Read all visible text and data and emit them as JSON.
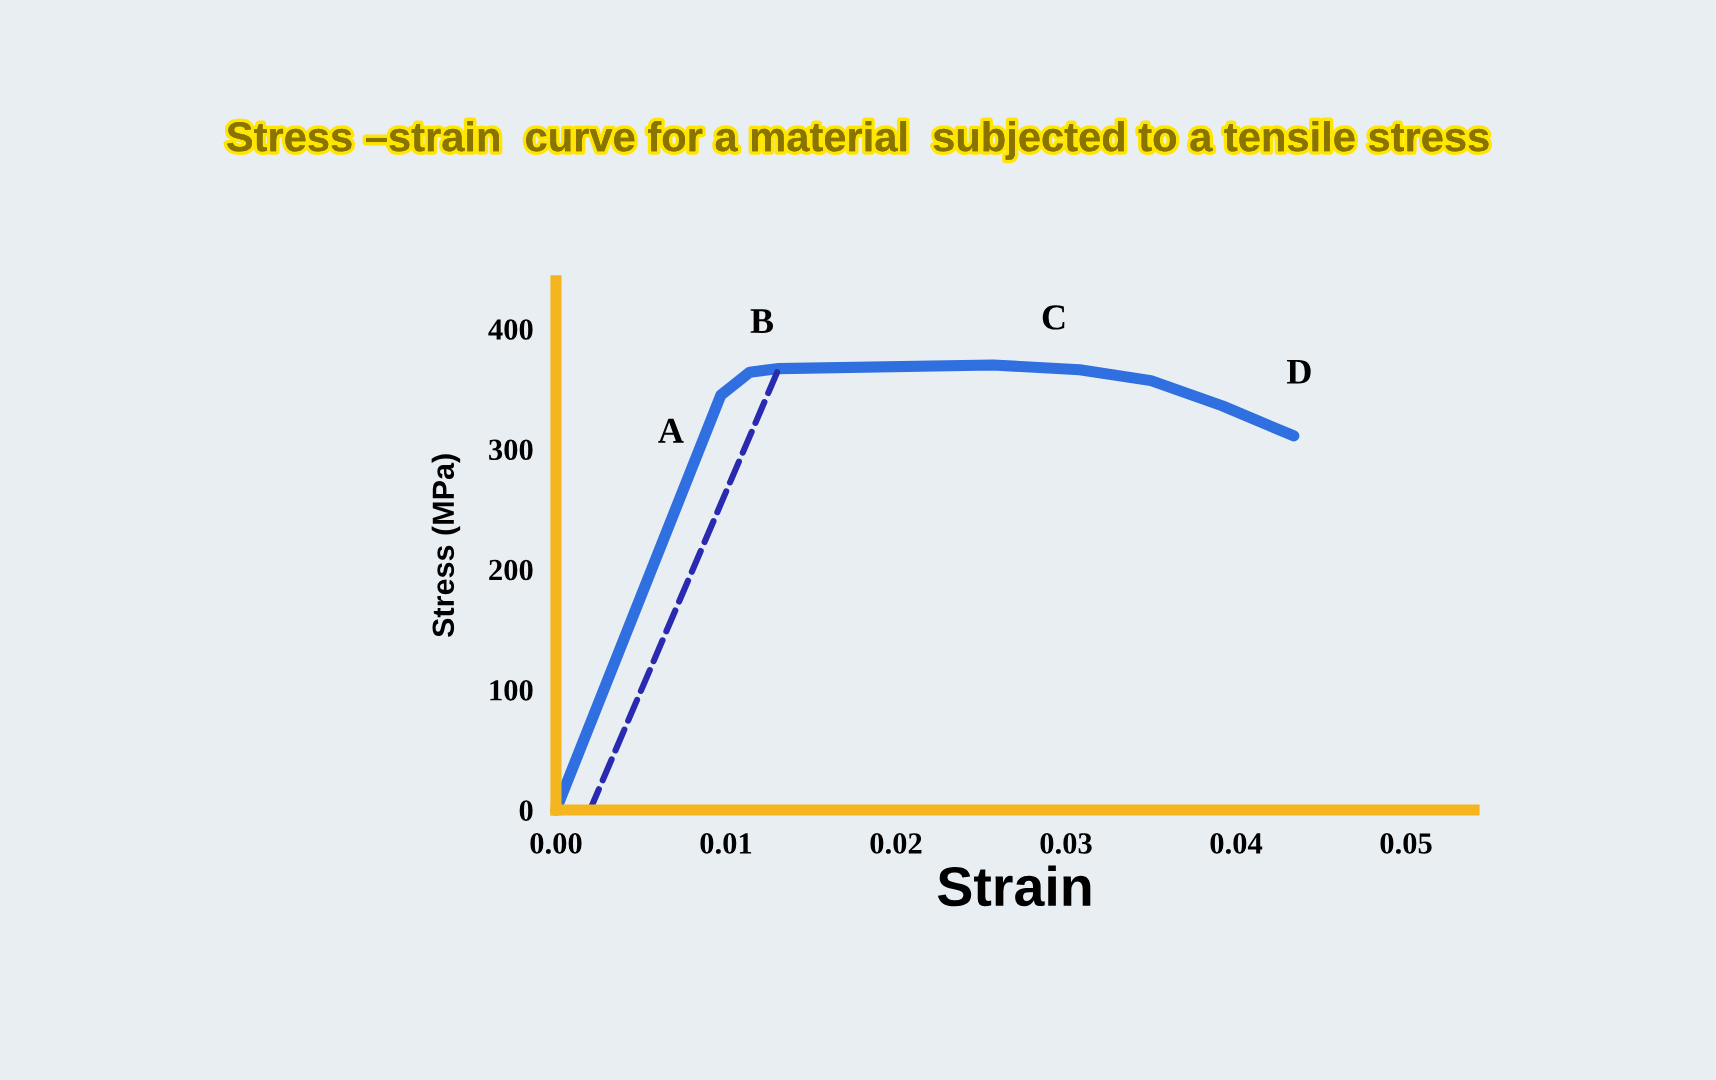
{
  "chart_data": {
    "type": "line",
    "title": "Stress –strain  curve for a material  subjected to a tensile stress",
    "xlabel": "Strain",
    "ylabel": "Stress (MPa)",
    "series": [
      {
        "color": "#2f6fe0",
        "line_style": "solid",
        "x": [
          0,
          0.0097,
          0.0114,
          0.0131,
          0.0257,
          0.0308,
          0.035,
          0.0392,
          0.0434
        ],
        "values": [
          0,
          345,
          364,
          367,
          370,
          366,
          357,
          336,
          311
        ]
      },
      {
        "color": "#2a2ab0",
        "line_style": "dashed",
        "x": [
          0.002,
          0.0131
        ],
        "values": [
          0,
          367
        ]
      }
    ],
    "annotations": [
      {
        "text": "A",
        "x": 0.0097,
        "y": 345
      },
      {
        "text": "B",
        "x": 0.0131,
        "y": 367
      },
      {
        "text": "C",
        "x": 0.0257,
        "y": 370
      },
      {
        "text": "D",
        "x": 0.0434,
        "y": 311
      }
    ],
    "xlim": [
      0,
      0.054
    ],
    "ylim": [
      0,
      440
    ],
    "xticks": [
      {
        "value": 0,
        "label": "0.00"
      },
      {
        "value": 0.01,
        "label": "0.01"
      },
      {
        "value": 0.02,
        "label": "0.02"
      },
      {
        "value": 0.03,
        "label": "0.03"
      },
      {
        "value": 0.04,
        "label": "0.04"
      },
      {
        "value": 0.05,
        "label": "0.05"
      }
    ],
    "yticks": [
      0,
      100,
      200,
      300,
      400
    ]
  }
}
